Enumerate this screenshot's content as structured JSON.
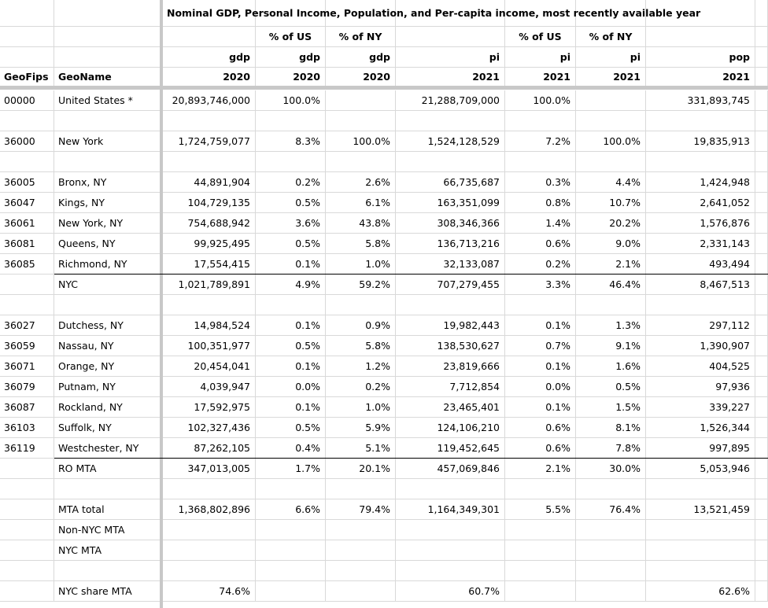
{
  "title": "Nominal GDP, Personal Income, Population, and Per-capita income, most recently available year",
  "headers": {
    "pct_us_gdp": "% of US",
    "pct_ny_gdp": "% of NY",
    "pct_us_pi": "% of US",
    "pct_ny_pi": "% of NY",
    "row3": [
      "",
      "",
      "gdp",
      "gdp",
      "gdp",
      "pi",
      "pi",
      "pi",
      "pop"
    ],
    "row4": [
      "GeoFips",
      "GeoName",
      "2020",
      "2020",
      "2020",
      "2021",
      "2021",
      "2021",
      "2021"
    ]
  },
  "rows": [
    [
      "00000",
      "United States *",
      "20,893,746,000",
      "100.0%",
      "",
      "21,288,709,000",
      "100.0%",
      "",
      "331,893,745"
    ],
    [
      "",
      "",
      "",
      "",
      "",
      "",
      "",
      "",
      ""
    ],
    [
      "36000",
      "New York",
      "1,724,759,077",
      "8.3%",
      "100.0%",
      "1,524,128,529",
      "7.2%",
      "100.0%",
      "19,835,913"
    ],
    [
      "",
      "",
      "",
      "",
      "",
      "",
      "",
      "",
      ""
    ],
    [
      "36005",
      "Bronx, NY",
      "44,891,904",
      "0.2%",
      "2.6%",
      "66,735,687",
      "0.3%",
      "4.4%",
      "1,424,948"
    ],
    [
      "36047",
      "Kings, NY",
      "104,729,135",
      "0.5%",
      "6.1%",
      "163,351,099",
      "0.8%",
      "10.7%",
      "2,641,052"
    ],
    [
      "36061",
      "New York, NY",
      "754,688,942",
      "3.6%",
      "43.8%",
      "308,346,366",
      "1.4%",
      "20.2%",
      "1,576,876"
    ],
    [
      "36081",
      "Queens, NY",
      "99,925,495",
      "0.5%",
      "5.8%",
      "136,713,216",
      "0.6%",
      "9.0%",
      "2,331,143"
    ],
    [
      "36085",
      "Richmond, NY",
      "17,554,415",
      "0.1%",
      "1.0%",
      "32,133,087",
      "0.2%",
      "2.1%",
      "493,494"
    ],
    [
      "",
      "NYC",
      "1,021,789,891",
      "4.9%",
      "59.2%",
      "707,279,455",
      "3.3%",
      "46.4%",
      "8,467,513"
    ],
    [
      "",
      "",
      "",
      "",
      "",
      "",
      "",
      "",
      ""
    ],
    [
      "36027",
      "Dutchess, NY",
      "14,984,524",
      "0.1%",
      "0.9%",
      "19,982,443",
      "0.1%",
      "1.3%",
      "297,112"
    ],
    [
      "36059",
      "Nassau, NY",
      "100,351,977",
      "0.5%",
      "5.8%",
      "138,530,627",
      "0.7%",
      "9.1%",
      "1,390,907"
    ],
    [
      "36071",
      "Orange, NY",
      "20,454,041",
      "0.1%",
      "1.2%",
      "23,819,666",
      "0.1%",
      "1.6%",
      "404,525"
    ],
    [
      "36079",
      "Putnam, NY",
      "4,039,947",
      "0.0%",
      "0.2%",
      "7,712,854",
      "0.0%",
      "0.5%",
      "97,936"
    ],
    [
      "36087",
      "Rockland, NY",
      "17,592,975",
      "0.1%",
      "1.0%",
      "23,465,401",
      "0.1%",
      "1.5%",
      "339,227"
    ],
    [
      "36103",
      "Suffolk, NY",
      "102,327,436",
      "0.5%",
      "5.9%",
      "124,106,210",
      "0.6%",
      "8.1%",
      "1,526,344"
    ],
    [
      "36119",
      "Westchester, NY",
      "87,262,105",
      "0.4%",
      "5.1%",
      "119,452,645",
      "0.6%",
      "7.8%",
      "997,895"
    ],
    [
      "",
      "RO MTA",
      "347,013,005",
      "1.7%",
      "20.1%",
      "457,069,846",
      "2.1%",
      "30.0%",
      "5,053,946"
    ],
    [
      "",
      "",
      "",
      "",
      "",
      "",
      "",
      "",
      ""
    ],
    [
      "",
      "MTA total",
      "1,368,802,896",
      "6.6%",
      "79.4%",
      "1,164,349,301",
      "5.5%",
      "76.4%",
      "13,521,459"
    ],
    [
      "",
      "Non-NYC MTA",
      "",
      "",
      "",
      "",
      "",
      "",
      ""
    ],
    [
      "",
      "NYC MTA",
      "",
      "",
      "",
      "",
      "",
      "",
      ""
    ],
    [
      "",
      "",
      "",
      "",
      "",
      "",
      "",
      "",
      ""
    ],
    [
      "",
      "NYC share MTA",
      "74.6%",
      "",
      "",
      "60.7%",
      "",
      "",
      "62.6%"
    ]
  ]
}
